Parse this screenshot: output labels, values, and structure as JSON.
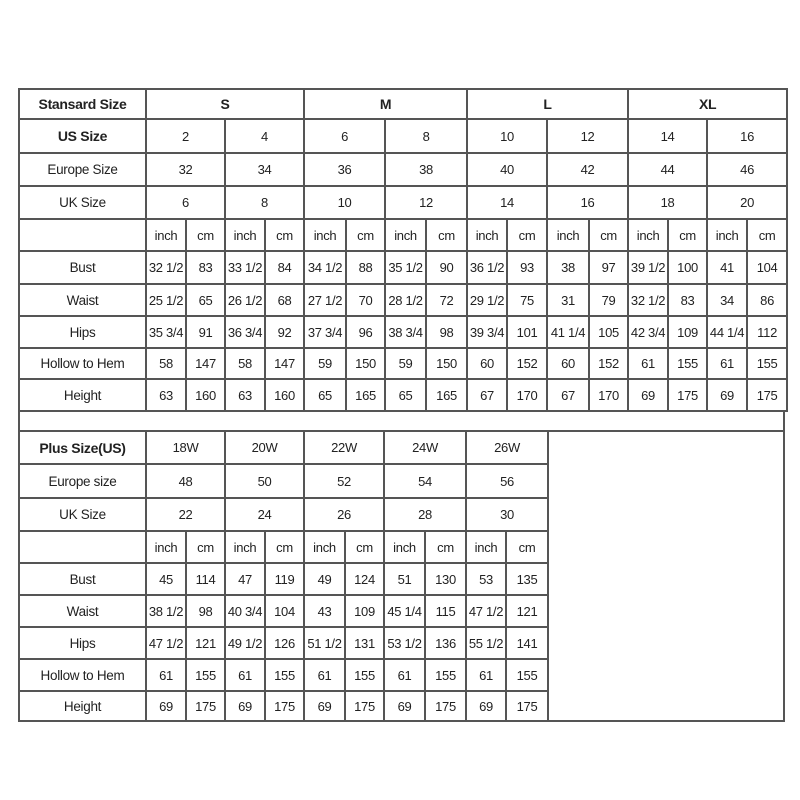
{
  "standard": {
    "header_label": "Stansard Size",
    "letter_sizes": [
      "S",
      "M",
      "L",
      "XL"
    ],
    "us_label": "US Size",
    "us_sizes": [
      "2",
      "4",
      "6",
      "8",
      "10",
      "12",
      "14",
      "16"
    ],
    "europe_label": "Europe Size",
    "europe_sizes": [
      "32",
      "34",
      "36",
      "38",
      "40",
      "42",
      "44",
      "46"
    ],
    "uk_label": "UK Size",
    "uk_sizes": [
      "6",
      "8",
      "10",
      "12",
      "14",
      "16",
      "18",
      "20"
    ],
    "units": [
      "inch",
      "cm"
    ],
    "measurements": [
      {
        "label": "Bust",
        "values": [
          "32 1/2",
          "83",
          "33 1/2",
          "84",
          "34 1/2",
          "88",
          "35 1/2",
          "90",
          "36 1/2",
          "93",
          "38",
          "97",
          "39 1/2",
          "100",
          "41",
          "104"
        ]
      },
      {
        "label": "Waist",
        "values": [
          "25 1/2",
          "65",
          "26 1/2",
          "68",
          "27 1/2",
          "70",
          "28 1/2",
          "72",
          "29 1/2",
          "75",
          "31",
          "79",
          "32 1/2",
          "83",
          "34",
          "86"
        ]
      },
      {
        "label": "Hips",
        "values": [
          "35 3/4",
          "91",
          "36 3/4",
          "92",
          "37 3/4",
          "96",
          "38 3/4",
          "98",
          "39 3/4",
          "101",
          "41 1/4",
          "105",
          "42 3/4",
          "109",
          "44 1/4",
          "112"
        ]
      },
      {
        "label": "Hollow to Hem",
        "values": [
          "58",
          "147",
          "58",
          "147",
          "59",
          "150",
          "59",
          "150",
          "60",
          "152",
          "60",
          "152",
          "61",
          "155",
          "61",
          "155"
        ]
      },
      {
        "label": "Height",
        "values": [
          "63",
          "160",
          "63",
          "160",
          "65",
          "165",
          "65",
          "165",
          "67",
          "170",
          "67",
          "170",
          "69",
          "175",
          "69",
          "175"
        ]
      }
    ]
  },
  "plus": {
    "header_label": "Plus Size(US)",
    "us_sizes": [
      "18W",
      "20W",
      "22W",
      "24W",
      "26W"
    ],
    "europe_label": "Europe size",
    "europe_sizes": [
      "48",
      "50",
      "52",
      "54",
      "56"
    ],
    "uk_label": "UK Size",
    "uk_sizes": [
      "22",
      "24",
      "26",
      "28",
      "30"
    ],
    "units": [
      "inch",
      "cm"
    ],
    "measurements": [
      {
        "label": "Bust",
        "values": [
          "45",
          "114",
          "47",
          "119",
          "49",
          "124",
          "51",
          "130",
          "53",
          "135"
        ]
      },
      {
        "label": "Waist",
        "values": [
          "38 1/2",
          "98",
          "40 3/4",
          "104",
          "43",
          "109",
          "45 1/4",
          "115",
          "47 1/2",
          "121"
        ]
      },
      {
        "label": "Hips",
        "values": [
          "47 1/2",
          "121",
          "49 1/2",
          "126",
          "51 1/2",
          "131",
          "53 1/2",
          "136",
          "55 1/2",
          "141"
        ]
      },
      {
        "label": "Hollow to Hem",
        "values": [
          "61",
          "155",
          "61",
          "155",
          "61",
          "155",
          "61",
          "155",
          "61",
          "155"
        ]
      },
      {
        "label": "Height",
        "values": [
          "69",
          "175",
          "69",
          "175",
          "69",
          "175",
          "69",
          "175",
          "69",
          "175"
        ]
      }
    ]
  }
}
